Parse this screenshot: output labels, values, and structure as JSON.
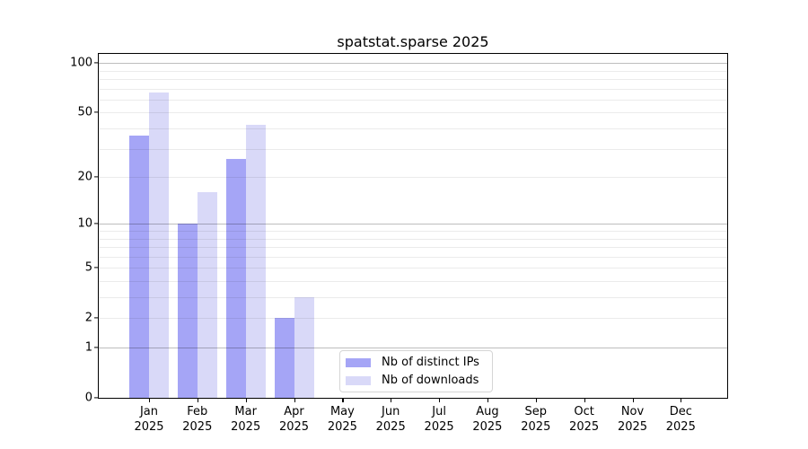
{
  "title": "spatstat.sparse 2025",
  "chart_data": {
    "type": "bar",
    "title": "spatstat.sparse 2025",
    "y_scale": "log1p",
    "categories": [
      "Jan",
      "Feb",
      "Mar",
      "Apr",
      "May",
      "Jun",
      "Jul",
      "Aug",
      "Sep",
      "Oct",
      "Nov",
      "Dec"
    ],
    "category_year": "2025",
    "series": [
      {
        "name": "Nb of distinct IPs",
        "color": "#a5a5f6",
        "values": [
          36,
          10,
          26,
          2,
          0,
          0,
          0,
          0,
          0,
          0,
          0,
          0
        ]
      },
      {
        "name": "Nb of downloads",
        "color": "#d9d9f8",
        "values": [
          66,
          16,
          42,
          3,
          0,
          0,
          0,
          0,
          0,
          0,
          0,
          0
        ]
      }
    ],
    "xlabel": "",
    "ylabel": "",
    "ylim": [
      0,
      113
    ],
    "y_ticks": [
      {
        "value": 100,
        "label": "100"
      },
      {
        "value": 50,
        "label": "50"
      },
      {
        "value": 20,
        "label": "20"
      },
      {
        "value": 10,
        "label": "10"
      },
      {
        "value": 5,
        "label": "5"
      },
      {
        "value": 2,
        "label": "2"
      },
      {
        "value": 1,
        "label": "1"
      },
      {
        "value": 0,
        "label": "0"
      }
    ],
    "gridlines_major": [
      1,
      10,
      100
    ],
    "gridlines_minor": [
      2,
      3,
      4,
      5,
      6,
      7,
      8,
      9,
      20,
      30,
      40,
      50,
      60,
      70,
      80,
      90
    ],
    "grid": true,
    "legend_position": "lower center"
  },
  "colors": {
    "distinct_ips": "#a5a5f6",
    "downloads": "#d9d9f8",
    "axis": "#000000",
    "grid_minor": "rgba(0,0,0,0.08)",
    "grid_major": "rgba(0,0,0,0.26)",
    "legend_border": "#d5d5d5",
    "background": "#ffffff"
  }
}
